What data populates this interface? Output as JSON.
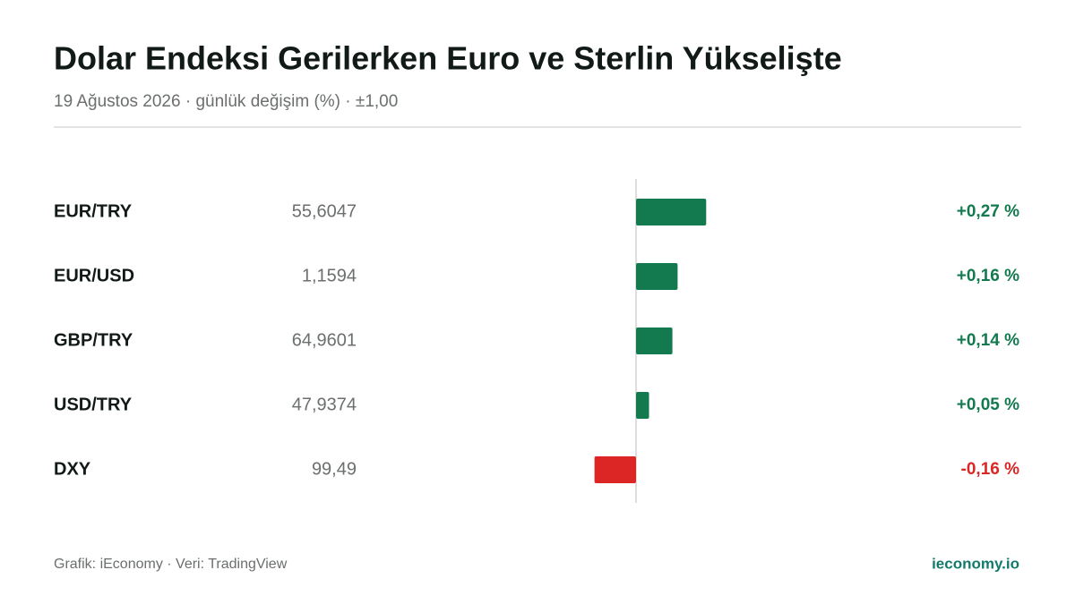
{
  "chart_data": {
    "type": "hbar",
    "title": "Dolar Endeksi Gerilerken Euro ve Sterlin Yükselişte",
    "subtitle": "19 Ağustos 2026 · günlük değişim (%) · ±1,00",
    "categories": [
      "EUR/TRY",
      "EUR/USD",
      "GBP/TRY",
      "USD/TRY",
      "DXY"
    ],
    "prices": [
      "55,6047",
      "1,1594",
      "64,9601",
      "47,9374",
      "99,49"
    ],
    "values": [
      0.27,
      0.16,
      0.14,
      0.05,
      -0.16
    ],
    "value_labels": [
      "+0,27 %",
      "+0,16 %",
      "+0,14 %",
      "+0,05 %",
      "-0,16 %"
    ],
    "colors": [
      "#137a4f",
      "#137a4f",
      "#137a4f",
      "#137a4f",
      "#dc2626"
    ],
    "xlim": [
      -1,
      1
    ],
    "source": "Grafik: iEconomy · Veri: TradingView",
    "brand": "ieconomy.io"
  }
}
